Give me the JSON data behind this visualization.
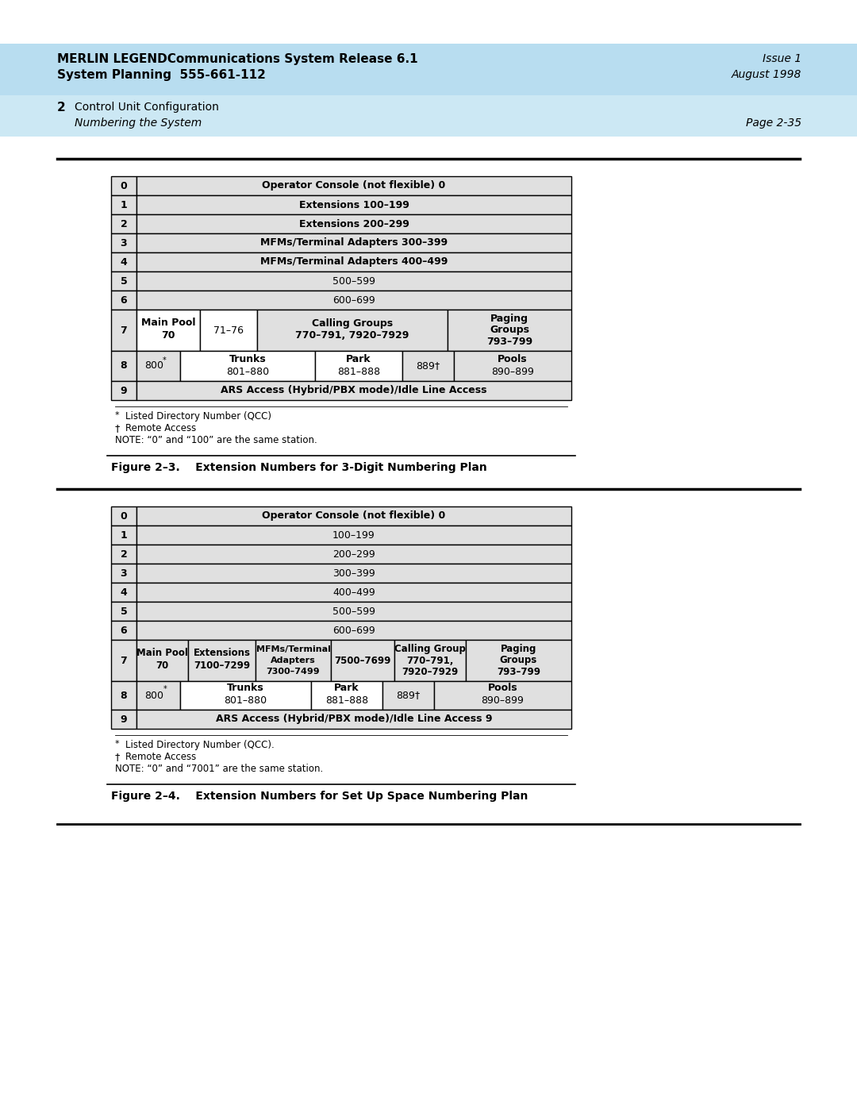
{
  "header_bg": "#b8ddf0",
  "header_line1": "MERLIN LEGENDCommunications System Release 6.1",
  "header_line2": "System Planning  555-661-112",
  "header_right1": "Issue 1",
  "header_right2": "August 1998",
  "subheader_bg": "#cce8f4",
  "subheader_num": "2",
  "subheader_text": "Control Unit Configuration",
  "subheader_sub": "Numbering the System",
  "subheader_page": "Page 2-35",
  "fig1_title": "Figure 2–3.    Extension Numbers for 3-Digit Numbering Plan",
  "fig2_title": "Figure 2–4.    Extension Numbers for Set Up Space Numbering Plan",
  "table_bg": "#e0e0e0",
  "table_bg_white": "#ffffff",
  "border_color": "#000000",
  "page_bg": "#ffffff"
}
